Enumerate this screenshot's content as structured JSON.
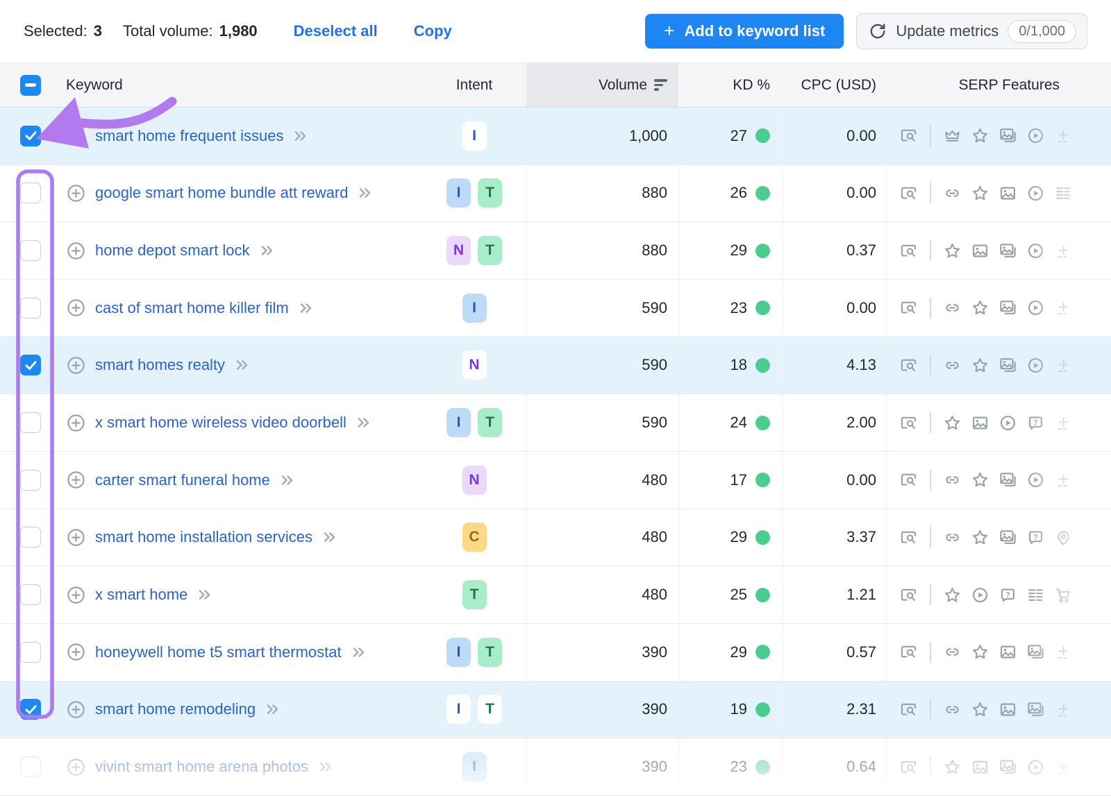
{
  "toolbar": {
    "selected_label": "Selected:",
    "selected_count": "3",
    "total_volume_label": "Total volume:",
    "total_volume": "1,980",
    "deselect_all": "Deselect all",
    "copy": "Copy",
    "add_plus": "+",
    "add_button": "Add to keyword list",
    "update_metrics": "Update metrics",
    "update_counter": "0/1,000"
  },
  "table": {
    "columns": {
      "keyword": "Keyword",
      "intent": "Intent",
      "volume": "Volume",
      "kd": "KD %",
      "cpc": "CPC (USD)",
      "serp": "SERP Features"
    },
    "rows": [
      {
        "keyword": "smart home frequent issues",
        "selected": true,
        "faded": false,
        "intents": [
          "I"
        ],
        "volume": "1,000",
        "kd": "27",
        "cpc": "0.00",
        "serp": [
          "preview",
          "crown",
          "star",
          "images",
          "video",
          "plus"
        ]
      },
      {
        "keyword": "google smart home bundle att reward",
        "selected": false,
        "faded": false,
        "intents": [
          "I",
          "T"
        ],
        "volume": "880",
        "kd": "26",
        "cpc": "0.00",
        "serp": [
          "preview",
          "link",
          "star",
          "image",
          "video",
          "list"
        ]
      },
      {
        "keyword": "home depot smart lock",
        "selected": false,
        "faded": false,
        "intents": [
          "N",
          "T"
        ],
        "volume": "880",
        "kd": "29",
        "cpc": "0.37",
        "serp": [
          "preview",
          "star",
          "image",
          "images",
          "video",
          "plus"
        ]
      },
      {
        "keyword": "cast of smart home killer film",
        "selected": false,
        "faded": false,
        "intents": [
          "I"
        ],
        "volume": "590",
        "kd": "23",
        "cpc": "0.00",
        "serp": [
          "preview",
          "link",
          "star",
          "images",
          "video",
          "plus"
        ]
      },
      {
        "keyword": "smart homes realty",
        "selected": true,
        "faded": false,
        "intents": [
          "N"
        ],
        "volume": "590",
        "kd": "18",
        "cpc": "4.13",
        "serp": [
          "preview",
          "link",
          "star",
          "images",
          "video",
          "plus"
        ]
      },
      {
        "keyword": "x smart home wireless video doorbell",
        "selected": false,
        "faded": false,
        "intents": [
          "I",
          "T"
        ],
        "volume": "590",
        "kd": "24",
        "cpc": "2.00",
        "serp": [
          "preview",
          "star",
          "image",
          "video",
          "faq",
          "plus"
        ]
      },
      {
        "keyword": "carter smart funeral home",
        "selected": false,
        "faded": false,
        "intents": [
          "N"
        ],
        "volume": "480",
        "kd": "17",
        "cpc": "0.00",
        "serp": [
          "preview",
          "link",
          "star",
          "images",
          "video",
          "plus"
        ]
      },
      {
        "keyword": "smart home installation services",
        "selected": false,
        "faded": false,
        "intents": [
          "C"
        ],
        "volume": "480",
        "kd": "29",
        "cpc": "3.37",
        "serp": [
          "preview",
          "link",
          "star",
          "images",
          "faq",
          "location"
        ]
      },
      {
        "keyword": "x smart home",
        "selected": false,
        "faded": false,
        "intents": [
          "T"
        ],
        "volume": "480",
        "kd": "25",
        "cpc": "1.21",
        "serp": [
          "preview",
          "star",
          "video",
          "faq",
          "list",
          "cart"
        ]
      },
      {
        "keyword": "honeywell home t5 smart thermostat",
        "selected": false,
        "faded": false,
        "intents": [
          "I",
          "T"
        ],
        "volume": "390",
        "kd": "29",
        "cpc": "0.57",
        "serp": [
          "preview",
          "link",
          "star",
          "image",
          "images",
          "plus"
        ]
      },
      {
        "keyword": "smart home remodeling",
        "selected": true,
        "faded": false,
        "intents": [
          "I",
          "T"
        ],
        "volume": "390",
        "kd": "19",
        "cpc": "2.31",
        "serp": [
          "preview",
          "link",
          "star",
          "image",
          "images",
          "plus"
        ]
      },
      {
        "keyword": "vivint smart home arena photos",
        "selected": false,
        "faded": true,
        "intents": [
          "I"
        ],
        "volume": "390",
        "kd": "23",
        "cpc": "0.64",
        "serp": [
          "preview",
          "star",
          "image",
          "images",
          "video",
          "plus"
        ]
      }
    ]
  },
  "colors": {
    "primary_blue": "#1d86f3",
    "link_blue": "#2173e6",
    "keyword_blue": "#2b63c6",
    "selected_row_bg": "#e4f2fc",
    "kd_dot_green": "#4bcd90",
    "annotation_purple": "#ab7bf0",
    "checkbox_blue": "#1d87f2"
  }
}
